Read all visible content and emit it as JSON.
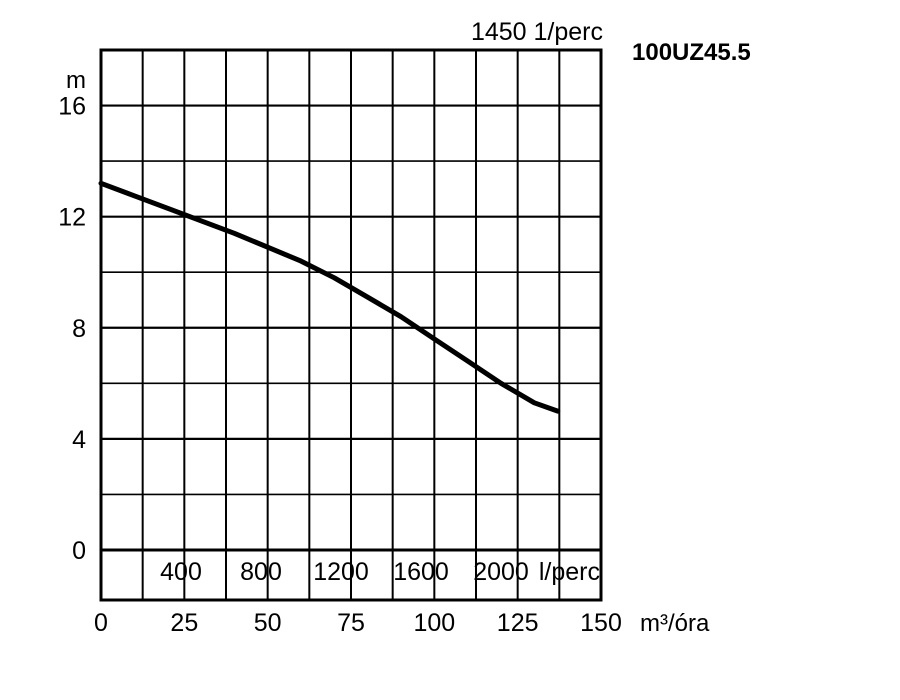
{
  "chart_data": {
    "type": "line",
    "model": "100UZ45.5",
    "speed_label": "1450 1/perc",
    "y_unit": "m",
    "x_unit": "m³/óra",
    "secondary_x_unit": "l/perc",
    "y_ticks": [
      "0",
      "4",
      "8",
      "12",
      "16"
    ],
    "x_ticks": [
      "0",
      "25",
      "50",
      "75",
      "100",
      "125",
      "150"
    ],
    "secondary_x_ticks": [
      "400",
      "800",
      "1200",
      "1600",
      "2000"
    ],
    "xlim": [
      0,
      150
    ],
    "ylim": [
      -1.8,
      18
    ],
    "grid": true,
    "series": [
      {
        "x": [
          0,
          10,
          20,
          30,
          40,
          50,
          60,
          70,
          80,
          90,
          100,
          110,
          120,
          130,
          137
        ],
        "y": [
          13.2,
          12.75,
          12.3,
          11.85,
          11.4,
          10.9,
          10.4,
          9.8,
          9.1,
          8.4,
          7.6,
          6.8,
          6.0,
          5.3,
          5.0
        ]
      }
    ]
  },
  "colors": {
    "line": "#000000",
    "grid": "#000000",
    "background": "#ffffff"
  }
}
